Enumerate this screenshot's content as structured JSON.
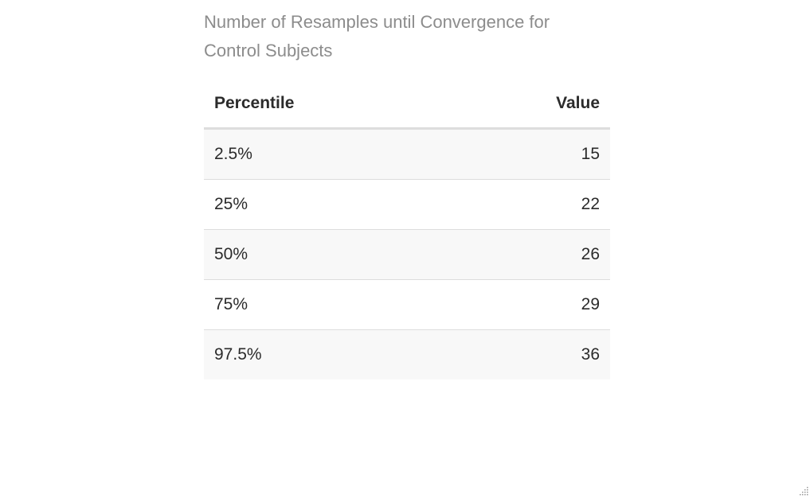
{
  "caption": "Number of Resamples until Convergence for Control Subjects",
  "table": {
    "headers": [
      "Percentile",
      "Value"
    ],
    "rows": [
      {
        "percentile": "2.5%",
        "value": "15"
      },
      {
        "percentile": "25%",
        "value": "22"
      },
      {
        "percentile": "50%",
        "value": "26"
      },
      {
        "percentile": "75%",
        "value": "29"
      },
      {
        "percentile": "97.5%",
        "value": "36"
      }
    ]
  }
}
